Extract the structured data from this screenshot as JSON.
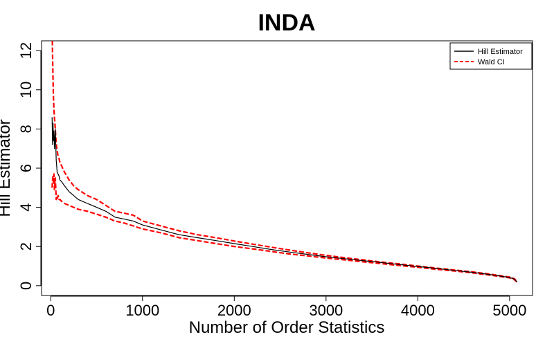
{
  "chart_data": {
    "type": "line",
    "title": "INDA",
    "xlabel": "Number of Order Statistics",
    "ylabel": "Hill Estimator",
    "xlim": [
      -100,
      5250
    ],
    "ylim": [
      -0.5,
      12.5
    ],
    "xticks": [
      0,
      1000,
      2000,
      3000,
      4000,
      5000
    ],
    "yticks": [
      0,
      2,
      4,
      6,
      8,
      10,
      12
    ],
    "grid": false,
    "legend_position": "top-right",
    "series": [
      {
        "name": "Hill Estimator",
        "color": "#000000",
        "dash": "solid",
        "x": [
          15,
          20,
          25,
          30,
          35,
          40,
          45,
          50,
          55,
          60,
          65,
          70,
          80,
          90,
          100,
          120,
          150,
          200,
          250,
          300,
          400,
          500,
          600,
          700,
          800,
          900,
          1000,
          1200,
          1400,
          1600,
          1800,
          2000,
          2200,
          2400,
          2600,
          2800,
          3000,
          3200,
          3400,
          3600,
          3800,
          4000,
          4200,
          4400,
          4600,
          4800,
          5000,
          5050,
          5080
        ],
        "y": [
          8.6,
          7.2,
          8.3,
          7.4,
          7.9,
          7.0,
          7.5,
          8.0,
          7.2,
          6.4,
          6.1,
          5.8,
          5.7,
          5.6,
          5.4,
          5.3,
          5.1,
          4.8,
          4.6,
          4.4,
          4.2,
          4.0,
          3.8,
          3.5,
          3.4,
          3.3,
          3.1,
          2.85,
          2.6,
          2.45,
          2.3,
          2.15,
          2.0,
          1.85,
          1.72,
          1.6,
          1.48,
          1.38,
          1.28,
          1.18,
          1.08,
          0.98,
          0.88,
          0.78,
          0.68,
          0.56,
          0.42,
          0.34,
          0.2
        ]
      },
      {
        "name": "Wald CI",
        "color": "#ff0000",
        "dash": "dashed",
        "x": [
          15,
          18,
          20,
          25,
          30,
          35,
          40,
          45,
          50,
          55,
          60,
          65,
          70,
          80,
          90,
          100,
          120,
          150,
          200,
          250,
          300,
          400,
          500,
          600,
          700,
          800,
          900,
          1000,
          1200,
          1400,
          1600,
          1800,
          2000,
          2200,
          2400,
          2600,
          2800,
          3000,
          3200,
          3400,
          3600,
          3800,
          4000,
          4200,
          4400,
          4600,
          4800,
          5000,
          5050,
          5080
        ],
        "y": [
          12.5,
          12.5,
          11.8,
          10.5,
          9.6,
          9.0,
          8.6,
          8.3,
          8.0,
          7.6,
          7.3,
          7.0,
          6.9,
          6.6,
          6.5,
          6.3,
          6.1,
          5.8,
          5.4,
          5.1,
          4.9,
          4.6,
          4.4,
          4.1,
          3.8,
          3.7,
          3.6,
          3.3,
          3.05,
          2.8,
          2.6,
          2.45,
          2.28,
          2.12,
          1.97,
          1.82,
          1.68,
          1.55,
          1.43,
          1.32,
          1.21,
          1.11,
          1.0,
          0.9,
          0.8,
          0.7,
          0.58,
          0.44,
          0.36,
          0.22
        ]
      },
      {
        "name": "",
        "color": "#ff0000",
        "dash": "dashed",
        "x": [
          15,
          20,
          25,
          30,
          35,
          40,
          45,
          50,
          55,
          60,
          65,
          70,
          80,
          90,
          100,
          120,
          150,
          200,
          250,
          300,
          400,
          500,
          600,
          700,
          800,
          900,
          1000,
          1200,
          1400,
          1600,
          1800,
          2000,
          2200,
          2400,
          2600,
          2800,
          3000,
          3200,
          3400,
          3600,
          3800,
          4000,
          4200,
          4400,
          4600,
          4800,
          5000,
          5050,
          5080
        ],
        "y": [
          5.0,
          5.4,
          5.6,
          5.2,
          5.7,
          4.9,
          5.3,
          5.5,
          5.0,
          4.4,
          4.5,
          4.4,
          4.6,
          4.4,
          4.4,
          4.3,
          4.2,
          4.1,
          4.0,
          3.9,
          3.8,
          3.65,
          3.5,
          3.3,
          3.2,
          3.05,
          2.9,
          2.7,
          2.45,
          2.3,
          2.15,
          2.0,
          1.88,
          1.75,
          1.62,
          1.52,
          1.41,
          1.32,
          1.22,
          1.13,
          1.03,
          0.94,
          0.84,
          0.75,
          0.65,
          0.53,
          0.4,
          0.32,
          0.18
        ]
      }
    ]
  }
}
